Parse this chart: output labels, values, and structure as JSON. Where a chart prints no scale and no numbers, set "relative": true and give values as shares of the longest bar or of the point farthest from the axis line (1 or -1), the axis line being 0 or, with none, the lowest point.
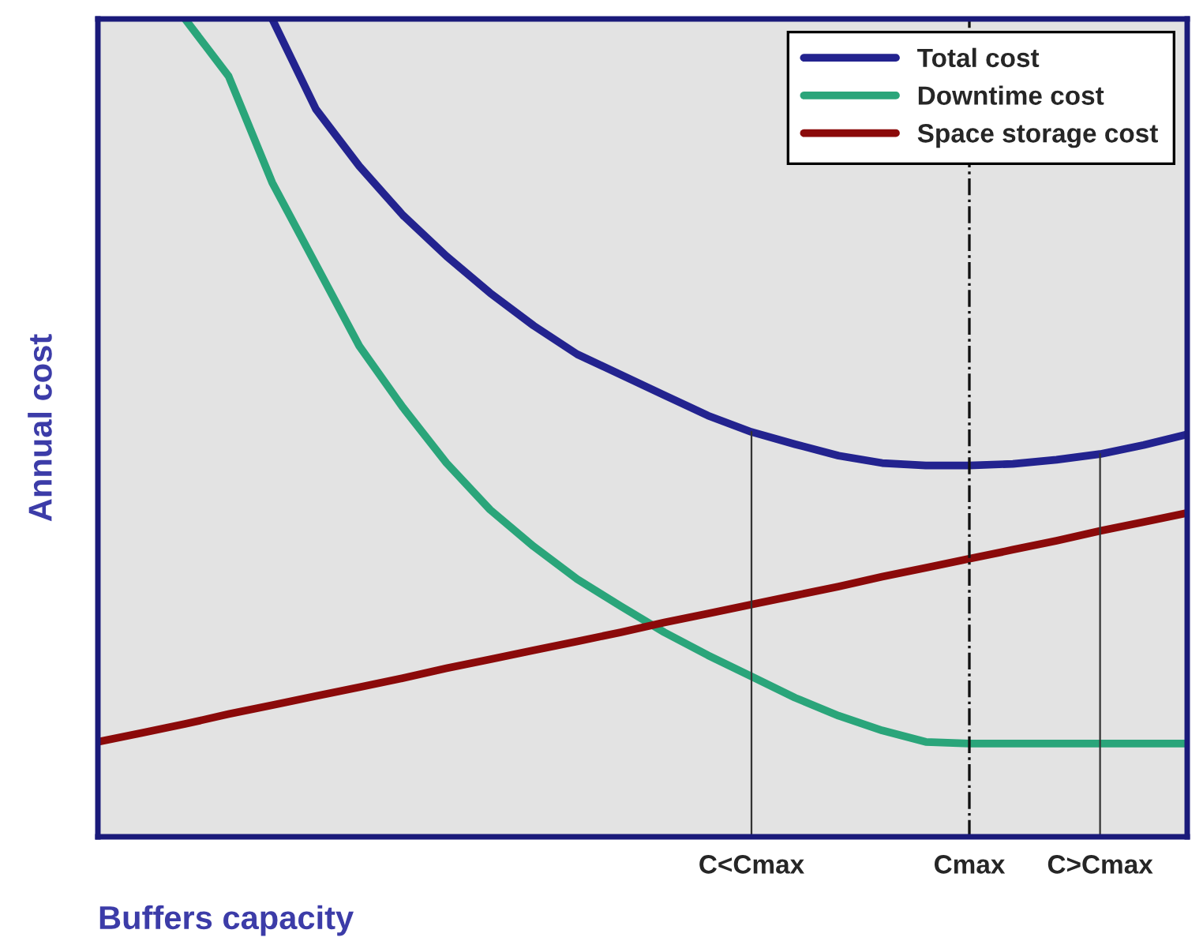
{
  "chart_data": {
    "type": "line",
    "relative": true,
    "xlabel": "Buffers capacity",
    "ylabel": "Annual cost",
    "categories": [
      null,
      null,
      null,
      null,
      null,
      null,
      null,
      null,
      null,
      null,
      null,
      null,
      null,
      null,
      null,
      "C<Cmax",
      null,
      null,
      null,
      null,
      "Cmax",
      null,
      null,
      "C>Cmax",
      null,
      null
    ],
    "tick_labels": "x",
    "grid": false,
    "legend": "top right",
    "line_style": "solid",
    "marker": "none",
    "series": [
      {
        "name": "Total cost",
        "color": "#23238f",
        "values": [
          null,
          null,
          null,
          null,
          1.0,
          0.89,
          0.82,
          0.76,
          0.71,
          0.665,
          0.625,
          0.59,
          0.565,
          0.54,
          0.515,
          0.495,
          0.48,
          0.466,
          0.457,
          0.454,
          0.454,
          0.456,
          0.461,
          0.468,
          0.479,
          0.492
        ]
      },
      {
        "name": "Downtime cost",
        "color": "#2aa57a",
        "values": [
          null,
          null,
          1.0,
          0.93,
          0.8,
          0.7,
          0.6,
          0.525,
          0.457,
          0.4,
          0.355,
          0.315,
          0.282,
          0.25,
          0.222,
          0.196,
          0.17,
          0.148,
          0.13,
          0.116,
          0.114,
          0.114,
          0.114,
          0.114,
          0.114,
          0.114
        ]
      },
      {
        "name": "Space storage cost",
        "color": "#8b0a0a",
        "values": [
          0.116,
          0.127,
          0.138,
          0.15,
          0.161,
          0.172,
          0.183,
          0.194,
          0.206,
          0.217,
          0.228,
          0.239,
          0.25,
          0.262,
          0.273,
          0.284,
          0.295,
          0.306,
          0.318,
          0.329,
          0.34,
          0.351,
          0.362,
          0.374,
          0.385,
          0.396
        ]
      }
    ],
    "ref_lines": [
      {
        "axis": "x",
        "value": "C<Cmax",
        "color": "#333333",
        "line_style": "solid"
      },
      {
        "axis": "x",
        "value": "Cmax",
        "color": "#111111",
        "line_style": "dashdot"
      },
      {
        "axis": "x",
        "value": "C>Cmax",
        "color": "#333333",
        "line_style": "solid"
      }
    ]
  }
}
